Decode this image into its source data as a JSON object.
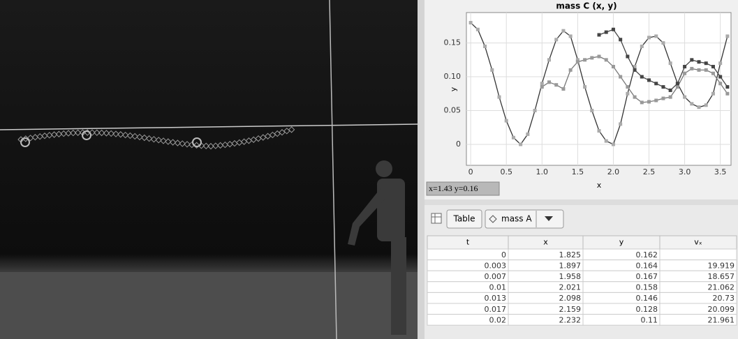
{
  "chart_data": {
    "type": "line",
    "title": "mass C (x, y)",
    "x_label": "x",
    "y_label": "y",
    "xlim": [
      -0.06,
      3.65
    ],
    "ylim": [
      -0.031,
      0.195
    ],
    "xticks": [
      0,
      0.5,
      {
        "value": 1,
        "label": "1.0"
      },
      1.5,
      {
        "value": 2,
        "label": "2.0"
      },
      2.5,
      {
        "value": 3,
        "label": "3.0"
      },
      3.5
    ],
    "yticks": [
      0,
      0.05,
      {
        "value": 0.1,
        "label": "0.10"
      },
      0.15
    ],
    "series": [
      {
        "color": "#333333",
        "marker_color": "#aaaaaa",
        "x": [
          0,
          0.1,
          0.2,
          0.3,
          0.4,
          0.5,
          0.6,
          0.7,
          0.8,
          0.9,
          1.0,
          1.1,
          1.2,
          1.3,
          1.4,
          1.5,
          1.6,
          1.7,
          1.8,
          1.9,
          2.0,
          2.1,
          2.2,
          2.3,
          2.4,
          2.5,
          2.6,
          2.7,
          2.8,
          2.9,
          3.0,
          3.1,
          3.2,
          3.3,
          3.4,
          3.5,
          3.6
        ],
        "values": [
          0.18,
          0.17,
          0.145,
          0.11,
          0.07,
          0.035,
          0.01,
          0,
          0.015,
          0.05,
          0.09,
          0.125,
          0.155,
          0.168,
          0.16,
          0.125,
          0.085,
          0.05,
          0.02,
          0.005,
          0,
          0.03,
          0.075,
          0.115,
          0.145,
          0.158,
          0.16,
          0.15,
          0.12,
          0.09,
          0.07,
          0.06,
          0.055,
          0.058,
          0.075,
          0.12,
          0.16
        ]
      },
      {
        "color": "#777777",
        "marker_color": "#999999",
        "x": [
          1.0,
          1.1,
          1.2,
          1.3,
          1.4,
          1.5,
          1.6,
          1.7,
          1.8,
          1.9,
          2.0,
          2.1,
          2.2,
          2.3,
          2.4,
          2.5,
          2.6,
          2.7,
          2.8,
          2.9,
          3.0,
          3.1,
          3.2,
          3.3,
          3.4,
          3.5,
          3.6
        ],
        "values": [
          0.085,
          0.092,
          0.088,
          0.082,
          0.11,
          0.122,
          0.125,
          0.128,
          0.13,
          0.125,
          0.115,
          0.1,
          0.085,
          0.07,
          0.062,
          0.063,
          0.065,
          0.068,
          0.07,
          0.085,
          0.105,
          0.112,
          0.11,
          0.11,
          0.105,
          0.09,
          0.075
        ]
      },
      {
        "color": "#444444",
        "marker_color": "#444444",
        "x": [
          1.8,
          1.9,
          2.0,
          2.1,
          2.2,
          2.3,
          2.4,
          2.5,
          2.6,
          2.7,
          2.8,
          2.9,
          3.0,
          3.1,
          3.2,
          3.3,
          3.4,
          3.5,
          3.6
        ],
        "values": [
          0.162,
          0.166,
          0.17,
          0.155,
          0.13,
          0.11,
          0.1,
          0.095,
          0.09,
          0.085,
          0.08,
          0.09,
          0.115,
          0.125,
          0.122,
          0.12,
          0.115,
          0.1,
          0.085
        ]
      }
    ],
    "grid": true
  },
  "status": "x=1.43  y=0.16",
  "toolbar": {
    "table_button": "Table",
    "track": "mass A"
  },
  "table": {
    "headers": [
      "t",
      "x",
      "y",
      "vₓ"
    ],
    "rows": [
      [
        "0",
        "1.825",
        "0.162",
        null
      ],
      [
        "0.003",
        "1.897",
        "0.164",
        "19.919"
      ],
      [
        "0.007",
        "1.958",
        "0.167",
        "18.657"
      ],
      [
        "0.01",
        "2.021",
        "0.158",
        "21.062"
      ],
      [
        "0.013",
        "2.098",
        "0.146",
        "20.73"
      ],
      [
        "0.017",
        "2.159",
        "0.128",
        "20.099"
      ],
      [
        "0.02",
        "2.232",
        "0.11",
        "21.961"
      ]
    ]
  }
}
